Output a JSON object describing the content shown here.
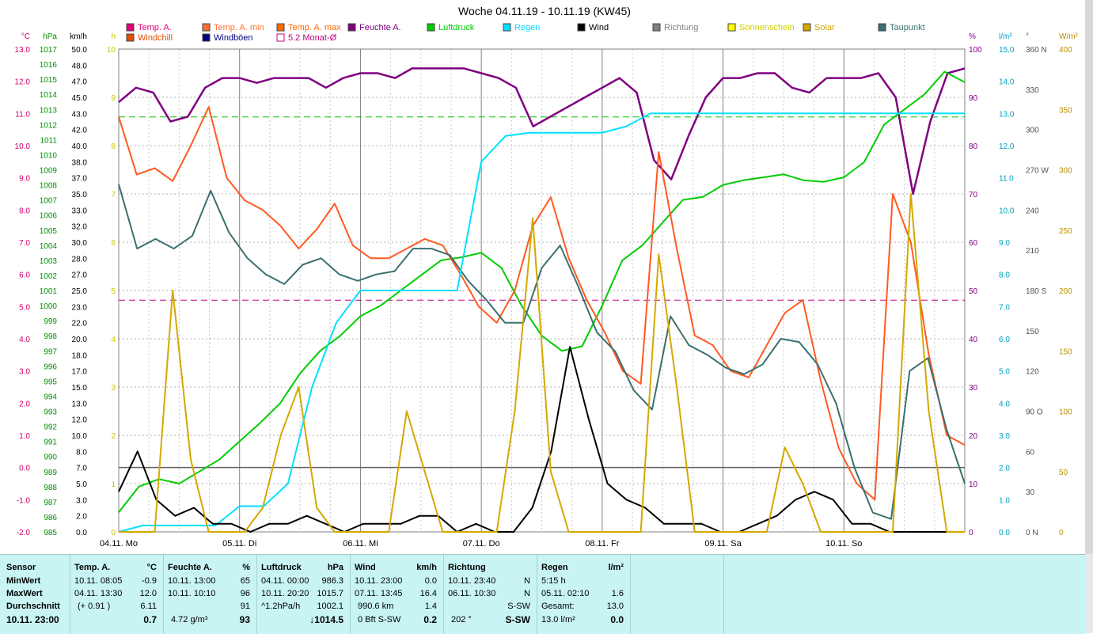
{
  "chart_data": {
    "type": "line",
    "title": "Woche 04.11.19 - 10.11.19 (KW45)",
    "x_labels": [
      "04.11. Mo",
      "05.11. Di",
      "06.11. Mi",
      "07.11. Do",
      "08.11. Fr",
      "09.11. Sa",
      "10.11. So"
    ],
    "legend": [
      {
        "label": "Temp. A.",
        "color": "#e0007a"
      },
      {
        "label": "Temp. A. min",
        "color": "#ff7030"
      },
      {
        "label": "Temp. A. max",
        "color": "#ff6a00"
      },
      {
        "label": "Feuchte A.",
        "color": "#800080"
      },
      {
        "label": "Luftdruck",
        "color": "#00cc00"
      },
      {
        "label": "Regen",
        "color": "#00e0ff"
      },
      {
        "label": "Wind",
        "color": "#000000"
      },
      {
        "label": "Richtung",
        "color": "#808080"
      },
      {
        "label": "Sonnenschein",
        "color": "#ffff00"
      },
      {
        "label": "Solar",
        "color": "#d4a800"
      },
      {
        "label": "Taupunkt",
        "color": "#3a7070"
      },
      {
        "label": "Windchill",
        "color": "#e05000"
      },
      {
        "label": "Windböen",
        "color": "#000080"
      },
      {
        "label": "5.2 Monat-Ø",
        "color": "#c00080"
      }
    ],
    "axes": {
      "temp": {
        "unit": "°C",
        "range": [
          -2,
          13
        ],
        "ticks": [
          "13.0",
          "12.0",
          "11.0",
          "10.0",
          "9.0",
          "8.0",
          "7.0",
          "6.0",
          "5.0",
          "4.0",
          "3.0",
          "2.0",
          "1.0",
          "0.0",
          "-1.0",
          "-2.0"
        ]
      },
      "pressure": {
        "unit": "hPa",
        "range": [
          985,
          1017
        ],
        "ticks": [
          "1017",
          "1016",
          "1015",
          "1014",
          "1013",
          "1012",
          "1011",
          "1010",
          "1009",
          "1008",
          "1007",
          "1006",
          "1005",
          "1004",
          "1003",
          "1002",
          "1001",
          "1000",
          "999",
          "998",
          "997",
          "996",
          "995",
          "994",
          "993",
          "992",
          "991",
          "990",
          "989",
          "988",
          "987",
          "986",
          "985"
        ]
      },
      "wind": {
        "unit": "km/h",
        "ticks": [
          "50.0",
          "48.0",
          "47.0",
          "45.0",
          "43.0",
          "42.0",
          "40.0",
          "38.0",
          "37.0",
          "35.0",
          "33.0",
          "32.0",
          "30.0",
          "28.0",
          "27.0",
          "25.0",
          "23.0",
          "22.0",
          "20.0",
          "18.0",
          "17.0",
          "15.0",
          "13.0",
          "12.0",
          "10.0",
          "8.0",
          "7.0",
          "5.0",
          "3.0",
          "2.0",
          "0.0"
        ]
      },
      "sun": {
        "unit": "h",
        "ticks": [
          "10",
          "9",
          "8",
          "7",
          "6",
          "5",
          "4",
          "3",
          "2",
          "1",
          "0"
        ]
      },
      "humidity": {
        "unit": "%",
        "range": [
          0,
          100
        ],
        "ticks": [
          "100",
          "90",
          "80",
          "70",
          "60",
          "50",
          "40",
          "30",
          "20",
          "10",
          "0"
        ]
      },
      "rain": {
        "unit": "l/m²",
        "range": [
          0,
          15
        ],
        "ticks": [
          "15.0",
          "14.0",
          "13.0",
          "12.0",
          "11.0",
          "10.0",
          "9.0",
          "8.0",
          "7.0",
          "6.0",
          "5.0",
          "4.0",
          "3.0",
          "2.0",
          "1.0",
          "0.0"
        ]
      },
      "direction": {
        "unit": "°",
        "ticks": [
          "360 N",
          "330",
          "300",
          "270 W",
          "240",
          "210",
          "180 S",
          "150",
          "120",
          "90 O",
          "60",
          "30",
          "0 N"
        ]
      },
      "solar": {
        "unit": "W/m²",
        "range": [
          0,
          400
        ],
        "ticks": [
          "400",
          "350",
          "300",
          "250",
          "200",
          "150",
          "100",
          "50",
          "0"
        ]
      }
    },
    "ref_lines": {
      "pressure_ref": 1012.5,
      "temp_month_avg": 5.2,
      "zero_temp": 0
    },
    "hours": [
      0,
      3,
      6,
      9,
      12,
      15,
      18,
      21,
      24,
      27,
      30,
      33,
      36,
      39,
      42,
      45,
      48,
      51,
      54,
      57,
      60,
      63,
      66,
      69,
      72,
      75,
      78,
      81,
      84,
      87,
      90,
      93,
      96,
      99,
      102,
      105,
      108,
      111,
      114,
      117,
      120,
      123,
      126,
      129,
      132,
      135,
      138,
      141,
      144,
      147,
      150,
      153,
      156,
      159,
      162,
      165,
      168
    ],
    "series": [
      {
        "name": "Feuchte A.",
        "axis": "humidity",
        "values": [
          89,
          92,
          91,
          85,
          86,
          92,
          94,
          94,
          93,
          94,
          94,
          94,
          92,
          94,
          95,
          95,
          94,
          96,
          96,
          96,
          96,
          95,
          94,
          92,
          84,
          86,
          88,
          90,
          92,
          94,
          91,
          77,
          73,
          82,
          90,
          94,
          94,
          95,
          95,
          92,
          91,
          94,
          94,
          94,
          95,
          90,
          70,
          85,
          95,
          96
        ]
      },
      {
        "name": "Luftdruck",
        "axis": "pressure",
        "values": [
          986.3,
          988,
          988.5,
          988.2,
          989,
          989.8,
          991,
          992.2,
          993.5,
          995.5,
          997,
          998,
          999.3,
          1000,
          1001,
          1002,
          1003,
          1003.2,
          1003.5,
          1002.5,
          1000,
          998,
          997,
          997.3,
          1000,
          1003,
          1004,
          1005.5,
          1007,
          1007.2,
          1008,
          1008.3,
          1008.5,
          1008.7,
          1008.3,
          1008.2,
          1008.5,
          1009.5,
          1012,
          1013,
          1014,
          1015.5,
          1014.8
        ]
      },
      {
        "name": "Temp. A.",
        "axis": "temp",
        "values": [
          10.9,
          9.1,
          9.3,
          8.9,
          10.0,
          11.2,
          9.0,
          8.3,
          8.0,
          7.5,
          6.8,
          7.4,
          8.2,
          6.9,
          6.5,
          6.5,
          6.8,
          7.1,
          6.9,
          6.0,
          5.0,
          4.5,
          5.5,
          7.5,
          8.4,
          6.5,
          5.2,
          4.2,
          3.0,
          2.6,
          9.8,
          6.8,
          4.1,
          3.8,
          3.0,
          2.8,
          3.8,
          4.8,
          5.2,
          2.7,
          0.6,
          -0.5,
          -1.0,
          8.5,
          7.0,
          3.5,
          1.0,
          0.7
        ]
      },
      {
        "name": "Taupunkt",
        "axis": "temp",
        "values": [
          8.8,
          6.8,
          7.1,
          6.8,
          7.2,
          8.6,
          7.3,
          6.5,
          6.0,
          5.7,
          6.3,
          6.5,
          6.0,
          5.8,
          6.0,
          6.1,
          6.8,
          6.8,
          6.6,
          5.8,
          5.2,
          4.5,
          4.5,
          6.2,
          6.9,
          5.6,
          4.2,
          3.6,
          2.4,
          1.8,
          4.7,
          3.8,
          3.5,
          3.1,
          2.9,
          3.2,
          4.0,
          3.9,
          3.2,
          2.0,
          0.0,
          -1.4,
          -1.6,
          3.0,
          3.4,
          1.2,
          -0.5
        ]
      },
      {
        "name": "Regen",
        "axis": "rain",
        "values": [
          0,
          0.2,
          0.2,
          0.2,
          0.2,
          0.8,
          0.8,
          1.5,
          4.5,
          6.5,
          7.5,
          7.5,
          7.5,
          7.5,
          7.5,
          11.5,
          12.3,
          12.4,
          12.4,
          12.4,
          12.4,
          12.6,
          13.0,
          13.0,
          13.0,
          13.0,
          13.0,
          13.0,
          13.0,
          13.0,
          13.0,
          13.0,
          13.0,
          13.0,
          13.0,
          13.0
        ]
      },
      {
        "name": "Wind",
        "axis": "wind",
        "values": [
          2.5,
          5.0,
          2.0,
          1.0,
          1.5,
          0.5,
          0.5,
          0.0,
          0.5,
          0.5,
          1.0,
          0.5,
          0.0,
          0.5,
          0.5,
          0.5,
          1.0,
          1.0,
          0.0,
          0.5,
          0.0,
          0.0,
          1.5,
          5.0,
          11.5,
          7.0,
          3.0,
          2.0,
          1.5,
          0.5,
          0.5,
          0.5,
          0.0,
          0.0,
          0.5,
          1.0,
          2.0,
          2.5,
          2.0,
          0.5,
          0.5,
          0.0,
          0.0,
          0.0,
          0.0,
          0.0
        ]
      },
      {
        "name": "Solar",
        "axis": "solar",
        "values": [
          0,
          0,
          0,
          200,
          60,
          0,
          0,
          0,
          20,
          80,
          120,
          20,
          0,
          0,
          0,
          0,
          100,
          50,
          0,
          0,
          0,
          0,
          100,
          260,
          50,
          0,
          0,
          0,
          0,
          0,
          230,
          120,
          0,
          0,
          0,
          0,
          0,
          70,
          40,
          0,
          0,
          0,
          0,
          0,
          280,
          100,
          0,
          0
        ]
      }
    ]
  },
  "panel": {
    "sensor": {
      "title": "Sensor",
      "min": "MinWert",
      "max": "MaxWert",
      "avg": "Durchschnitt",
      "current": "10.11. 23:00"
    },
    "temp": {
      "title": "Temp. A.",
      "unit": "°C",
      "min_time": "10.11. 08:05",
      "min_val": "-0.9",
      "max_time": "04.11. 13:30",
      "max_val": "12.0",
      "avg_note": "(+ 0.91 )",
      "avg_val": "6.11",
      "cur_val": "0.7"
    },
    "hum": {
      "title": "Feuchte A.",
      "unit": "%",
      "min_time": "10.11. 13:00",
      "min_val": "65",
      "max_time": "10.11. 10:10",
      "max_val": "96",
      "avg_val": "91",
      "cur_note": "4.72 g/m³",
      "cur_val": "93"
    },
    "press": {
      "title": "Luftdruck",
      "unit": "hPa",
      "min_time": "04.11. 00:00",
      "min_val": "986.3",
      "max_time": "10.11. 20:20",
      "max_val": "1015.7",
      "avg_note": "^1.2hPa/h",
      "avg_val": "1002.1",
      "cur_val": "↓1014.5"
    },
    "wind": {
      "title": "Wind",
      "unit": "km/h",
      "min_time": "10.11. 23:00",
      "min_val": "0.0",
      "max_time": "07.11. 13:45",
      "max_val": "16.4",
      "avg_note": "990.6 km",
      "avg_val": "1.4",
      "cur_note": "0 Bft S-SW",
      "cur_val": "0.2"
    },
    "dir": {
      "title": "Richtung",
      "min_time": "10.11. 23:40",
      "min_val": "N",
      "max_time": "06.11. 10:30",
      "max_val": "N",
      "avg_val": "S-SW",
      "cur_note": "202 °",
      "cur_val": "S-SW"
    },
    "rain": {
      "title": "Regen",
      "unit": "l/m²",
      "min_time": "5:15 h",
      "max_time": "05.11. 02:10",
      "max_val": "1.6",
      "avg_note": "Gesamt:",
      "avg_val": "13.0",
      "cur_note": "13.0 l/m²",
      "cur_val": "0.0"
    }
  }
}
